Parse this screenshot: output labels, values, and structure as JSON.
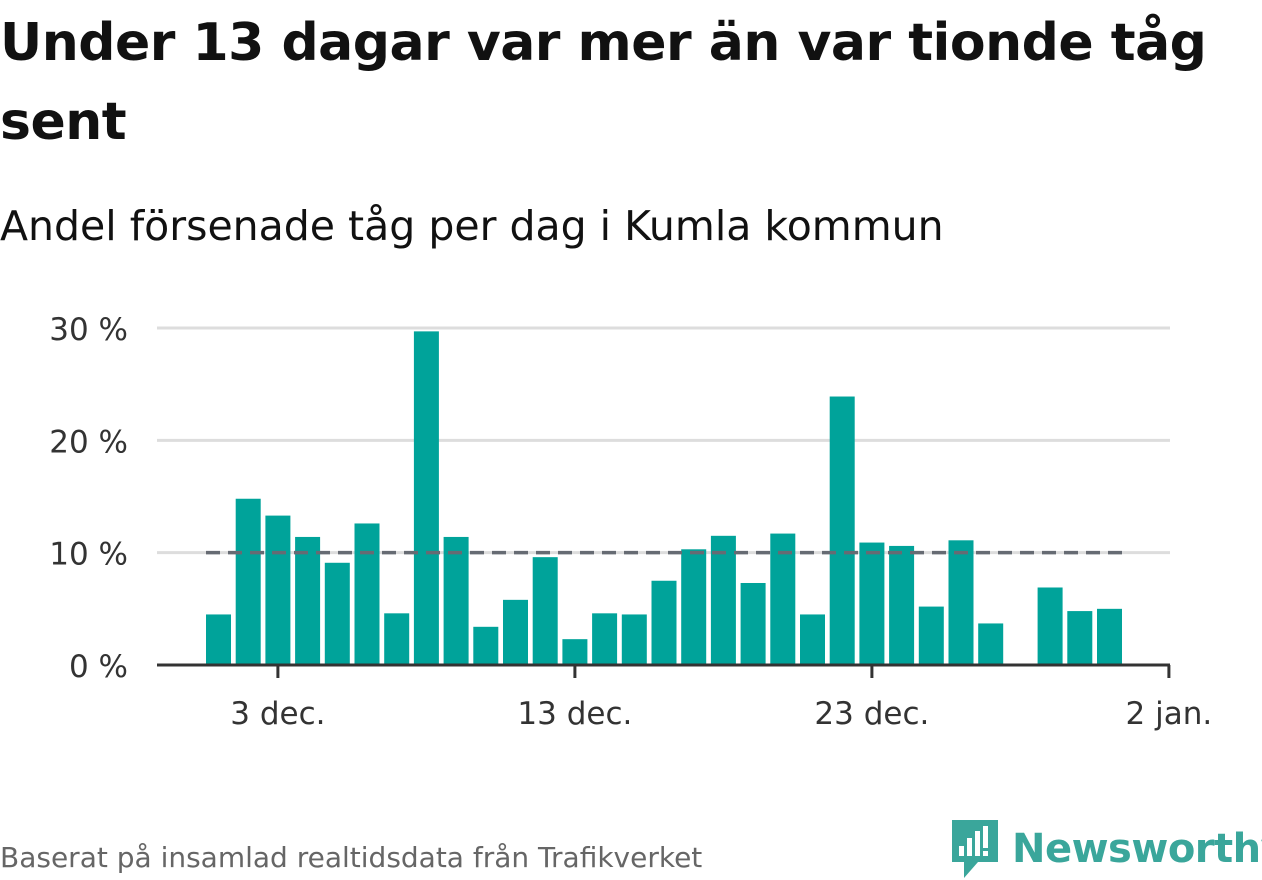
{
  "title": "Under 13 dagar var mer än var tionde tåg sent",
  "subtitle": "Andel försenade tåg per dag i Kumla kommun",
  "source": "Baserat på insamlad realtidsdata från Trafikverket",
  "brand": {
    "name": "Newsworthy",
    "color": "#3aa69b"
  },
  "colors": {
    "bar": "#00a39a",
    "reference_line": "#666b73",
    "grid": "#dddddd",
    "axis": "#333333"
  },
  "chart_data": {
    "type": "bar",
    "x_start": "2023-12-01",
    "x_step_days": 1,
    "values": [
      4.5,
      14.8,
      13.3,
      11.4,
      9.1,
      12.6,
      4.6,
      29.7,
      11.4,
      3.4,
      5.8,
      9.6,
      2.3,
      4.6,
      4.5,
      7.5,
      10.3,
      11.5,
      7.3,
      11.7,
      4.5,
      23.9,
      10.9,
      10.6,
      5.2,
      11.1,
      3.7,
      null,
      6.9,
      4.8,
      5.0
    ],
    "reference_line": {
      "value": 10,
      "style": "dashed"
    },
    "ylim": [
      0,
      30
    ],
    "y_ticks": [
      0,
      10,
      20,
      30
    ],
    "y_tick_labels": [
      "0 %",
      "10 %",
      "20 %",
      "30 %"
    ],
    "x_ticks": [
      {
        "date": "2023-12-03",
        "label": "3 dec."
      },
      {
        "date": "2023-12-13",
        "label": "13 dec."
      },
      {
        "date": "2023-12-23",
        "label": "23 dec."
      },
      {
        "date": "2024-01-02",
        "label": "2 jan."
      }
    ],
    "grid": true,
    "legend": "none"
  }
}
